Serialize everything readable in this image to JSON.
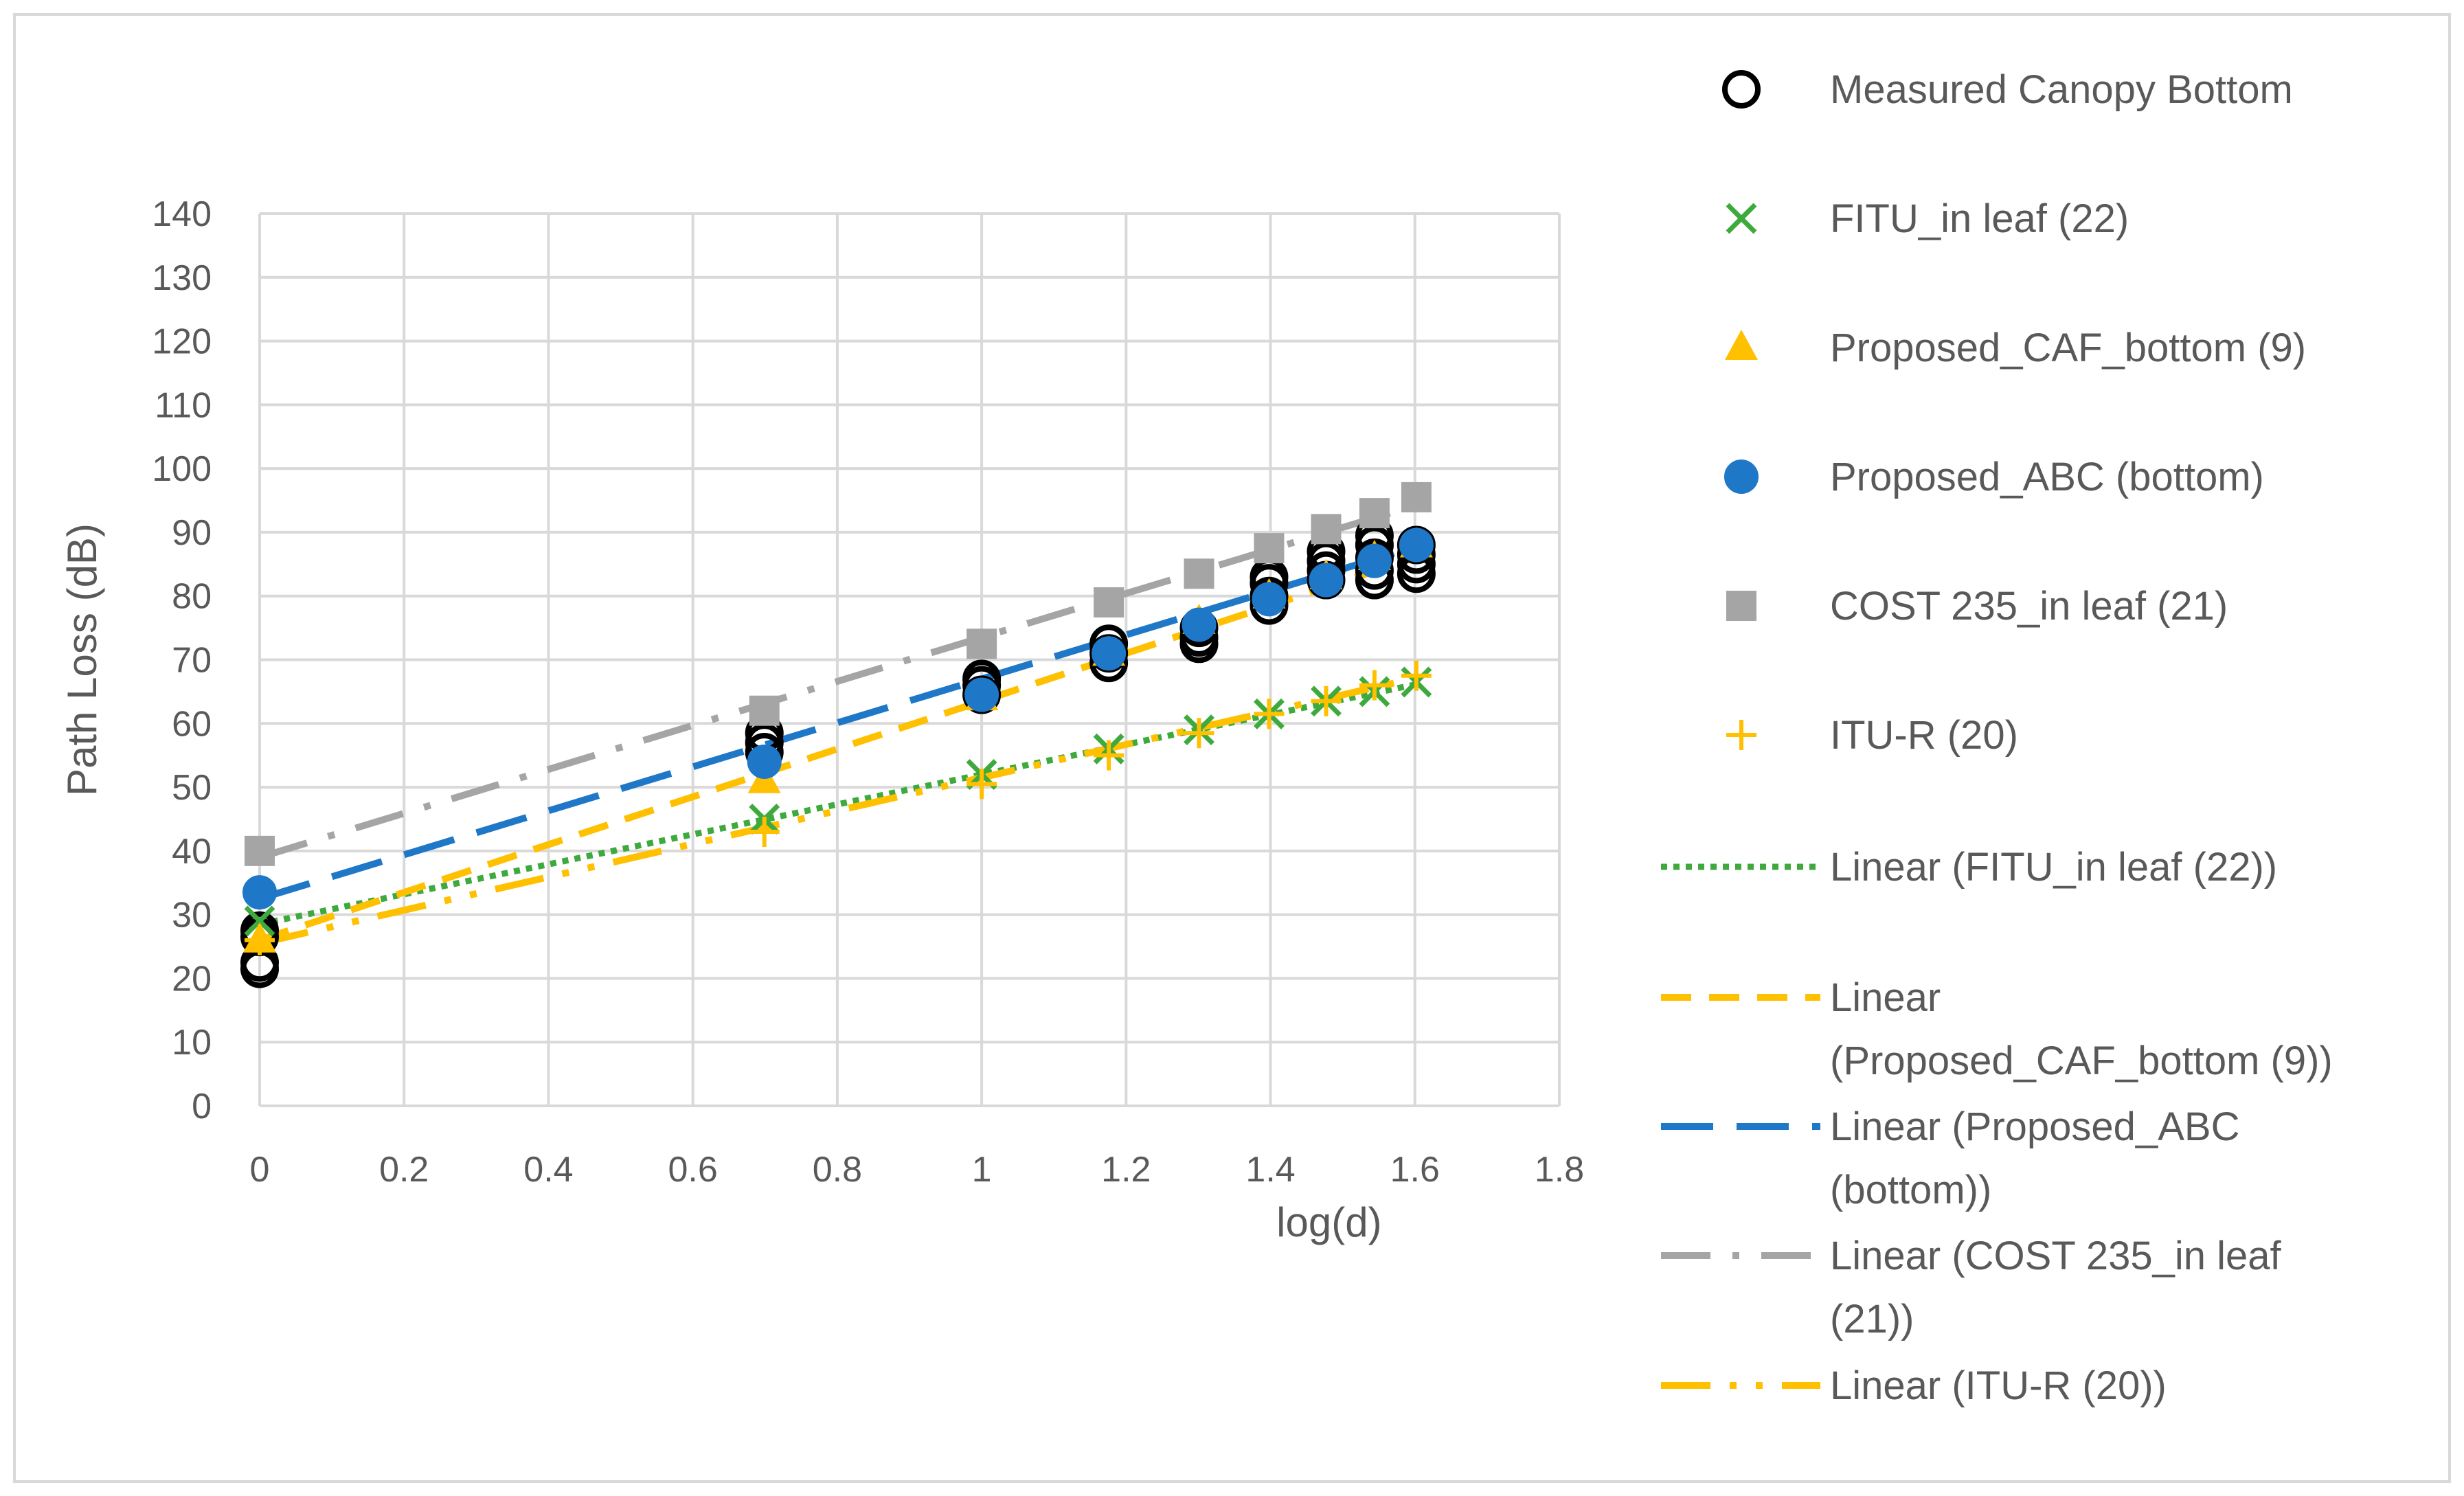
{
  "chart_data": {
    "type": "scatter",
    "title": "",
    "xlabel": "log(d)",
    "ylabel": "Path Loss (dB)",
    "xlim": [
      0,
      1.8
    ],
    "ylim": [
      0,
      140
    ],
    "x_ticks": [
      "0",
      "0.2",
      "0.4",
      "0.6",
      "0.8",
      "1",
      "1.2",
      "1.4",
      "1.6",
      "1.8"
    ],
    "y_ticks": [
      "0",
      "10",
      "20",
      "30",
      "40",
      "50",
      "60",
      "70",
      "80",
      "90",
      "100",
      "110",
      "120",
      "130",
      "140"
    ],
    "grid": true,
    "legend_position": "right",
    "series": [
      {
        "name": "Measured Canopy Bottom",
        "marker": "circle-open",
        "color": "#000000",
        "points": [
          [
            0,
            21.5
          ],
          [
            0,
            22.5
          ],
          [
            0,
            26.5
          ],
          [
            0,
            27.5
          ],
          [
            0.699,
            55.5
          ],
          [
            0.699,
            57
          ],
          [
            0.699,
            58.5
          ],
          [
            1,
            64.5
          ],
          [
            1,
            66
          ],
          [
            1,
            67
          ],
          [
            1.176,
            69.5
          ],
          [
            1.176,
            71
          ],
          [
            1.176,
            72.5
          ],
          [
            1.301,
            72.5
          ],
          [
            1.301,
            73.5
          ],
          [
            1.301,
            75
          ],
          [
            1.398,
            78.5
          ],
          [
            1.398,
            80
          ],
          [
            1.398,
            82
          ],
          [
            1.398,
            83
          ],
          [
            1.477,
            82.5
          ],
          [
            1.477,
            84
          ],
          [
            1.477,
            85.5
          ],
          [
            1.477,
            87
          ],
          [
            1.544,
            82.5
          ],
          [
            1.544,
            84
          ],
          [
            1.544,
            86
          ],
          [
            1.544,
            88
          ],
          [
            1.544,
            89.5
          ],
          [
            1.602,
            83.5
          ],
          [
            1.602,
            85
          ],
          [
            1.602,
            86.5
          ],
          [
            1.602,
            88
          ]
        ]
      },
      {
        "name": "FITU_in leaf (22)",
        "marker": "x",
        "color": "#3EAA3E",
        "points": [
          [
            0,
            29
          ],
          [
            0.699,
            45
          ],
          [
            1,
            52
          ],
          [
            1.176,
            56
          ],
          [
            1.301,
            59
          ],
          [
            1.398,
            61.5
          ],
          [
            1.477,
            63.5
          ],
          [
            1.544,
            65
          ],
          [
            1.602,
            66.5
          ]
        ]
      },
      {
        "name": "Proposed_CAF_bottom (9)",
        "marker": "triangle",
        "color": "#FFC000",
        "points": [
          [
            0,
            26
          ],
          [
            0.699,
            51
          ],
          [
            1,
            64
          ],
          [
            1.176,
            71
          ],
          [
            1.301,
            76
          ],
          [
            1.398,
            80
          ],
          [
            1.477,
            83
          ],
          [
            1.544,
            86
          ],
          [
            1.602,
            88
          ]
        ]
      },
      {
        "name": "Proposed_ABC (bottom)",
        "marker": "circle-filled",
        "color": "#1F77C8",
        "points": [
          [
            0,
            33.5
          ],
          [
            0.699,
            54
          ],
          [
            1,
            64.5
          ],
          [
            1.176,
            71
          ],
          [
            1.301,
            75.5
          ],
          [
            1.398,
            79.5
          ],
          [
            1.477,
            82.5
          ],
          [
            1.544,
            85.5
          ],
          [
            1.602,
            88
          ]
        ]
      },
      {
        "name": "COST 235_in leaf (21)",
        "marker": "square",
        "color": "#A5A5A5",
        "points": [
          [
            0,
            40
          ],
          [
            0.699,
            62
          ],
          [
            1,
            72.5
          ],
          [
            1.176,
            79
          ],
          [
            1.301,
            83.5
          ],
          [
            1.398,
            87.5
          ],
          [
            1.477,
            90.5
          ],
          [
            1.544,
            93
          ],
          [
            1.602,
            95.5
          ]
        ]
      },
      {
        "name": "ITU-R (20)",
        "marker": "plus",
        "color": "#FFC000",
        "points": [
          [
            0,
            26
          ],
          [
            0.699,
            43
          ],
          [
            1,
            50.5
          ],
          [
            1.176,
            55
          ],
          [
            1.301,
            58.5
          ],
          [
            1.398,
            61.5
          ],
          [
            1.477,
            63.5
          ],
          [
            1.544,
            66
          ],
          [
            1.602,
            67.5
          ]
        ]
      }
    ],
    "trendlines": [
      {
        "name": "Linear (FITU_in leaf (22))",
        "color": "#3EAA3E",
        "style": "dotted",
        "slope": 23.5,
        "intercept": 28.5
      },
      {
        "name": "Linear (Proposed_CAF_bottom (9))",
        "color": "#FFC000",
        "style": "dashed",
        "slope": 37.5,
        "intercept": 26
      },
      {
        "name": "Linear (Proposed_ABC (bottom))",
        "color": "#1F77C8",
        "style": "long-dash",
        "slope": 34.5,
        "intercept": 32.5
      },
      {
        "name": "Linear (COST 235_in leaf (21))",
        "color": "#A5A5A5",
        "style": "long-dash-dot",
        "slope": 34.5,
        "intercept": 39
      },
      {
        "name": "Linear (ITU-R (20))",
        "color": "#FFC000",
        "style": "long-dash-dot-dot",
        "slope": 26,
        "intercept": 25.5
      }
    ],
    "legend": [
      {
        "kind": "marker",
        "ref": "Measured Canopy Bottom",
        "lines": [
          "Measured Canopy Bottom"
        ]
      },
      {
        "kind": "marker",
        "ref": "FITU_in leaf (22)",
        "lines": [
          "FITU_in leaf (22)"
        ]
      },
      {
        "kind": "marker",
        "ref": "Proposed_CAF_bottom (9)",
        "lines": [
          "Proposed_CAF_bottom (9)"
        ]
      },
      {
        "kind": "marker",
        "ref": "Proposed_ABC (bottom)",
        "lines": [
          "Proposed_ABC (bottom)"
        ]
      },
      {
        "kind": "marker",
        "ref": "COST 235_in leaf (21)",
        "lines": [
          "COST 235_in leaf (21)"
        ]
      },
      {
        "kind": "marker",
        "ref": "ITU-R (20)",
        "lines": [
          "ITU-R (20)"
        ]
      },
      {
        "kind": "line",
        "ref": "Linear (FITU_in leaf (22))",
        "lines": [
          "Linear (FITU_in leaf (22))"
        ]
      },
      {
        "kind": "line",
        "ref": "Linear (Proposed_CAF_bottom (9))",
        "lines": [
          "Linear",
          "(Proposed_CAF_bottom (9))"
        ]
      },
      {
        "kind": "line",
        "ref": "Linear (Proposed_ABC (bottom))",
        "lines": [
          "Linear (Proposed_ABC",
          "(bottom))"
        ]
      },
      {
        "kind": "line",
        "ref": "Linear (COST 235_in leaf (21))",
        "lines": [
          "Linear (COST 235_in leaf",
          "(21))"
        ]
      },
      {
        "kind": "line",
        "ref": "Linear (ITU-R (20))",
        "lines": [
          "Linear (ITU-R (20))"
        ]
      }
    ]
  }
}
